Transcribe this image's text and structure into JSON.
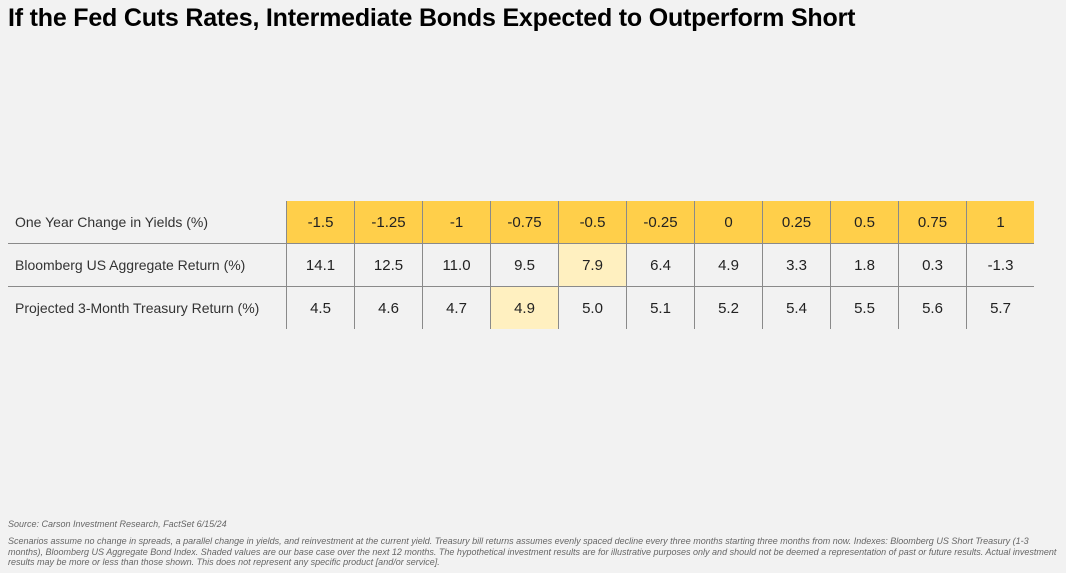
{
  "title": "If the Fed Cuts Rates, Intermediate Bonds Expected to Outperform Short",
  "source": "Source: Carson Investment Research, FactSet 6/15/24",
  "notes": "Scenarios assume no change in spreads, a parallel change in yields, and reinvestment at the current yield. Treasury bill returns assumes evenly spaced decline every three months starting three months from now. Indexes: Bloomberg US Short Treasury (1-3 months), Bloomberg US Aggregate Bond Index. Shaded values are our base case over the next 12 months. The hypothetical investment results are for illustrative purposes only and should not be deemed a representation of past or future results. Actual investment results may be more or less than those shown. This does not represent any specific product [and/or service].",
  "colors": {
    "header": "#ffcf4a",
    "highlight": "#fff0c0",
    "background": "#f2f2f2"
  },
  "chart_data": {
    "type": "table",
    "rows": [
      {
        "label": "One Year Change in Yields (%)",
        "values": [
          "-1.5",
          "-1.25",
          "-1",
          "-0.75",
          "-0.5",
          "-0.25",
          "0",
          "0.25",
          "0.5",
          "0.75",
          "1"
        ],
        "highlight_index": null
      },
      {
        "label": "Bloomberg US Aggregate Return (%)",
        "values": [
          "14.1",
          "12.5",
          "11.0",
          "9.5",
          "7.9",
          "6.4",
          "4.9",
          "3.3",
          "1.8",
          "0.3",
          "-1.3"
        ],
        "highlight_index": 4
      },
      {
        "label": "Projected 3-Month Treasury Return (%)",
        "values": [
          "4.5",
          "4.6",
          "4.7",
          "4.9",
          "5.0",
          "5.1",
          "5.2",
          "5.4",
          "5.5",
          "5.6",
          "5.7"
        ],
        "highlight_index": 3
      }
    ]
  }
}
